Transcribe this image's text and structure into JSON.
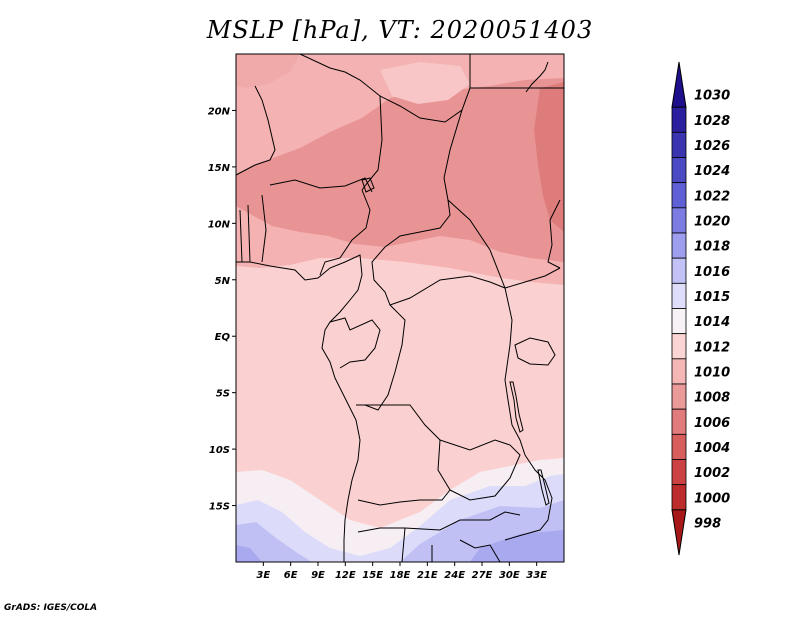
{
  "title": "MSLP [hPa], VT: 2020051403",
  "credit": "GrADS: IGES/COLA",
  "map": {
    "variable": "MSLP",
    "units": "hPa",
    "valid_time": "2020051403",
    "lon_range": [
      0,
      36
    ],
    "lat_range": [
      -20,
      25
    ],
    "lat_labels": [
      {
        "value": 20,
        "label": "20N"
      },
      {
        "value": 15,
        "label": "15N"
      },
      {
        "value": 10,
        "label": "10N"
      },
      {
        "value": 5,
        "label": "5N"
      },
      {
        "value": 0,
        "label": "EQ"
      },
      {
        "value": -5,
        "label": "5S"
      },
      {
        "value": -10,
        "label": "10S"
      },
      {
        "value": -15,
        "label": "15S"
      }
    ],
    "lon_labels": [
      {
        "value": 3,
        "label": "3E"
      },
      {
        "value": 6,
        "label": "6E"
      },
      {
        "value": 9,
        "label": "9E"
      },
      {
        "value": 12,
        "label": "12E"
      },
      {
        "value": 15,
        "label": "15E"
      },
      {
        "value": 18,
        "label": "18E"
      },
      {
        "value": 21,
        "label": "21E"
      },
      {
        "value": 24,
        "label": "24E"
      },
      {
        "value": 27,
        "label": "27E"
      },
      {
        "value": 30,
        "label": "30E"
      },
      {
        "value": 33,
        "label": "33E"
      }
    ]
  },
  "colorbar": {
    "levels": [
      {
        "label": "1030",
        "color": "#1e0f8c"
      },
      {
        "label": "1028",
        "color": "#2a1f9e"
      },
      {
        "label": "1026",
        "color": "#3a34b0"
      },
      {
        "label": "1024",
        "color": "#4b4ac4"
      },
      {
        "label": "1022",
        "color": "#6060d6"
      },
      {
        "label": "1020",
        "color": "#7c7ce2"
      },
      {
        "label": "1018",
        "color": "#9e9eee"
      },
      {
        "label": "1016",
        "color": "#c2c2f6"
      },
      {
        "label": "1015",
        "color": "#dedefb"
      },
      {
        "label": "1014",
        "color": "#f6f2f6"
      },
      {
        "label": "1012",
        "color": "#fbd4d4"
      },
      {
        "label": "1010",
        "color": "#f5b6b6"
      },
      {
        "label": "1008",
        "color": "#eb9a9a"
      },
      {
        "label": "1006",
        "color": "#e27c7c"
      },
      {
        "label": "1004",
        "color": "#d85e5e"
      },
      {
        "label": "1002",
        "color": "#cc4242"
      },
      {
        "label": "1000",
        "color": "#bd2c2c"
      },
      {
        "label": "998",
        "color": "#a81818"
      }
    ]
  }
}
